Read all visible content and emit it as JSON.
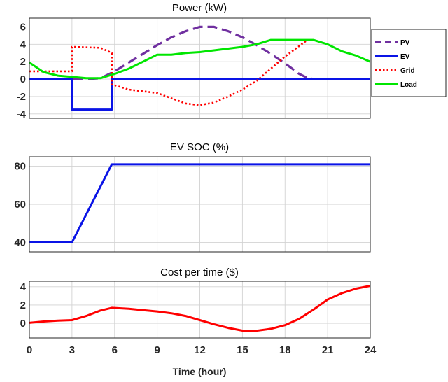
{
  "chart_data": [
    {
      "type": "line",
      "title": "Power  (kW)",
      "xlim": [
        0,
        24
      ],
      "ylim": [
        -4.5,
        7
      ],
      "yticks": [
        6,
        4,
        2,
        0,
        -2,
        -4
      ],
      "grid": true,
      "legend": {
        "placement": "right",
        "entries": [
          "PV",
          "EV",
          "Grid",
          "Load"
        ]
      },
      "series": [
        {
          "name": "PV",
          "color": "#7030a0",
          "style": "dashed",
          "x": [
            0,
            3,
            4,
            5,
            6,
            7,
            8,
            9,
            10,
            11,
            12,
            13,
            14,
            15,
            16,
            17,
            18,
            18.5,
            19,
            19.5,
            20,
            22,
            24
          ],
          "y": [
            0,
            0,
            0,
            0.1,
            0.9,
            1.9,
            2.9,
            3.9,
            4.8,
            5.5,
            6.0,
            6.0,
            5.5,
            4.8,
            3.9,
            2.9,
            1.8,
            1.2,
            0.6,
            0.2,
            0,
            0,
            0
          ]
        },
        {
          "name": "EV",
          "color": "#0a14e6",
          "style": "solid",
          "x": [
            0,
            3,
            3,
            5.8,
            5.8,
            24
          ],
          "y": [
            0,
            0,
            -3.5,
            -3.5,
            0,
            0
          ]
        },
        {
          "name": "Grid",
          "color": "#ff0000",
          "style": "dotted",
          "x": [
            0,
            3,
            3,
            5,
            5.8,
            5.8,
            7,
            8,
            9,
            10,
            11,
            12,
            13,
            14,
            15,
            16,
            17,
            18,
            19,
            19.5
          ],
          "y": [
            0.9,
            0.9,
            3.7,
            3.6,
            3.0,
            -0.6,
            -1.2,
            -1.4,
            -1.6,
            -2.2,
            -2.8,
            -3.0,
            -2.7,
            -2.0,
            -1.2,
            -0.2,
            1.2,
            2.6,
            3.8,
            4.4
          ]
        },
        {
          "name": "Load",
          "color": "#00e600",
          "style": "solid",
          "x": [
            0,
            1,
            2,
            3,
            4,
            5,
            6,
            7,
            8,
            9,
            10,
            11,
            12,
            13,
            14,
            15,
            16,
            17,
            18,
            19,
            20,
            21,
            22,
            23,
            24
          ],
          "y": [
            1.9,
            0.8,
            0.4,
            0.25,
            0.1,
            0.1,
            0.6,
            1.2,
            2.0,
            2.8,
            2.8,
            3.0,
            3.1,
            3.3,
            3.5,
            3.7,
            4.0,
            4.5,
            4.5,
            4.5,
            4.5,
            4.0,
            3.2,
            2.7,
            2.0
          ]
        }
      ]
    },
    {
      "type": "line",
      "title": "EV SOC (%)",
      "xlim": [
        0,
        24
      ],
      "ylim": [
        35,
        85
      ],
      "yticks": [
        80,
        60,
        40
      ],
      "grid": true,
      "series": [
        {
          "color": "#0a14e6",
          "style": "solid",
          "x": [
            0,
            3,
            5.8,
            24
          ],
          "y": [
            40,
            40,
            81,
            81
          ]
        }
      ]
    },
    {
      "type": "line",
      "title": "Cost per time ($)",
      "xlim": [
        0,
        24
      ],
      "ylim": [
        -1.6,
        4.6
      ],
      "yticks": [
        4,
        2,
        0
      ],
      "xticks": [
        0,
        3,
        6,
        9,
        12,
        15,
        18,
        21,
        24
      ],
      "xlabel": "Time (hour)",
      "grid": true,
      "series": [
        {
          "color": "#ff0000",
          "style": "solid",
          "x": [
            0,
            1,
            2,
            3,
            4,
            5,
            5.8,
            7,
            8,
            9,
            10,
            11,
            12,
            13,
            14,
            15,
            15.8,
            17,
            18,
            19,
            20,
            21,
            22,
            23,
            24
          ],
          "y": [
            0.05,
            0.2,
            0.3,
            0.35,
            0.8,
            1.4,
            1.7,
            1.6,
            1.45,
            1.3,
            1.1,
            0.8,
            0.35,
            -0.1,
            -0.5,
            -0.8,
            -0.85,
            -0.6,
            -0.2,
            0.5,
            1.5,
            2.6,
            3.3,
            3.8,
            4.1
          ]
        }
      ]
    }
  ]
}
